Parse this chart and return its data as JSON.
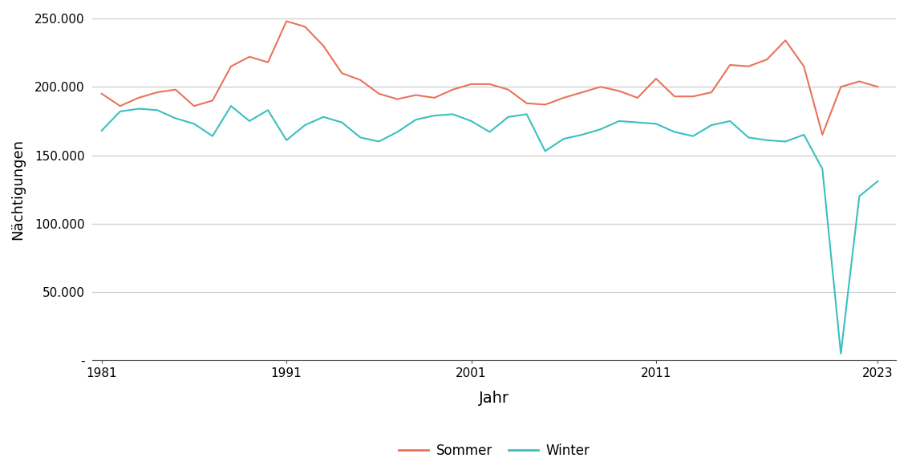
{
  "years": [
    1981,
    1982,
    1983,
    1984,
    1985,
    1986,
    1987,
    1988,
    1989,
    1990,
    1991,
    1992,
    1993,
    1994,
    1995,
    1996,
    1997,
    1998,
    1999,
    2000,
    2001,
    2002,
    2003,
    2004,
    2005,
    2006,
    2007,
    2008,
    2009,
    2010,
    2011,
    2012,
    2013,
    2014,
    2015,
    2016,
    2017,
    2018,
    2019,
    2020,
    2021,
    2022,
    2023
  ],
  "sommer": [
    195000,
    186000,
    192000,
    196000,
    198000,
    186000,
    190000,
    215000,
    222000,
    218000,
    248000,
    244000,
    230000,
    210000,
    205000,
    195000,
    191000,
    194000,
    192000,
    198000,
    202000,
    202000,
    198000,
    188000,
    187000,
    192000,
    196000,
    200000,
    197000,
    192000,
    206000,
    193000,
    193000,
    196000,
    216000,
    215000,
    220000,
    234000,
    215000,
    165000,
    200000,
    204000,
    200000
  ],
  "winter": [
    168000,
    182000,
    184000,
    183000,
    177000,
    173000,
    164000,
    186000,
    175000,
    183000,
    161000,
    172000,
    178000,
    174000,
    163000,
    160000,
    167000,
    176000,
    179000,
    180000,
    175000,
    167000,
    178000,
    180000,
    153000,
    162000,
    165000,
    169000,
    175000,
    174000,
    173000,
    167000,
    164000,
    172000,
    175000,
    163000,
    161000,
    160000,
    165000,
    140000,
    5000,
    120000,
    131000
  ],
  "sommer_color": "#E8735A",
  "winter_color": "#3BBFBF",
  "bg_color": "#FFFFFF",
  "panel_bg": "#FFFFFF",
  "grid_color": "#C8C8C8",
  "xlabel": "Jahr",
  "ylabel": "Nächtigungen",
  "ylim": [
    0,
    250000
  ],
  "xlim": [
    1980.5,
    2024
  ],
  "yticks": [
    0,
    50000,
    100000,
    150000,
    200000,
    250000
  ],
  "ytick_labels": [
    "-",
    "50.000",
    "100.000",
    "150.000",
    "200.000",
    "250.000"
  ],
  "xticks": [
    1981,
    1991,
    2001,
    2011,
    2023
  ],
  "legend_labels": [
    "Sommer",
    "Winter"
  ]
}
